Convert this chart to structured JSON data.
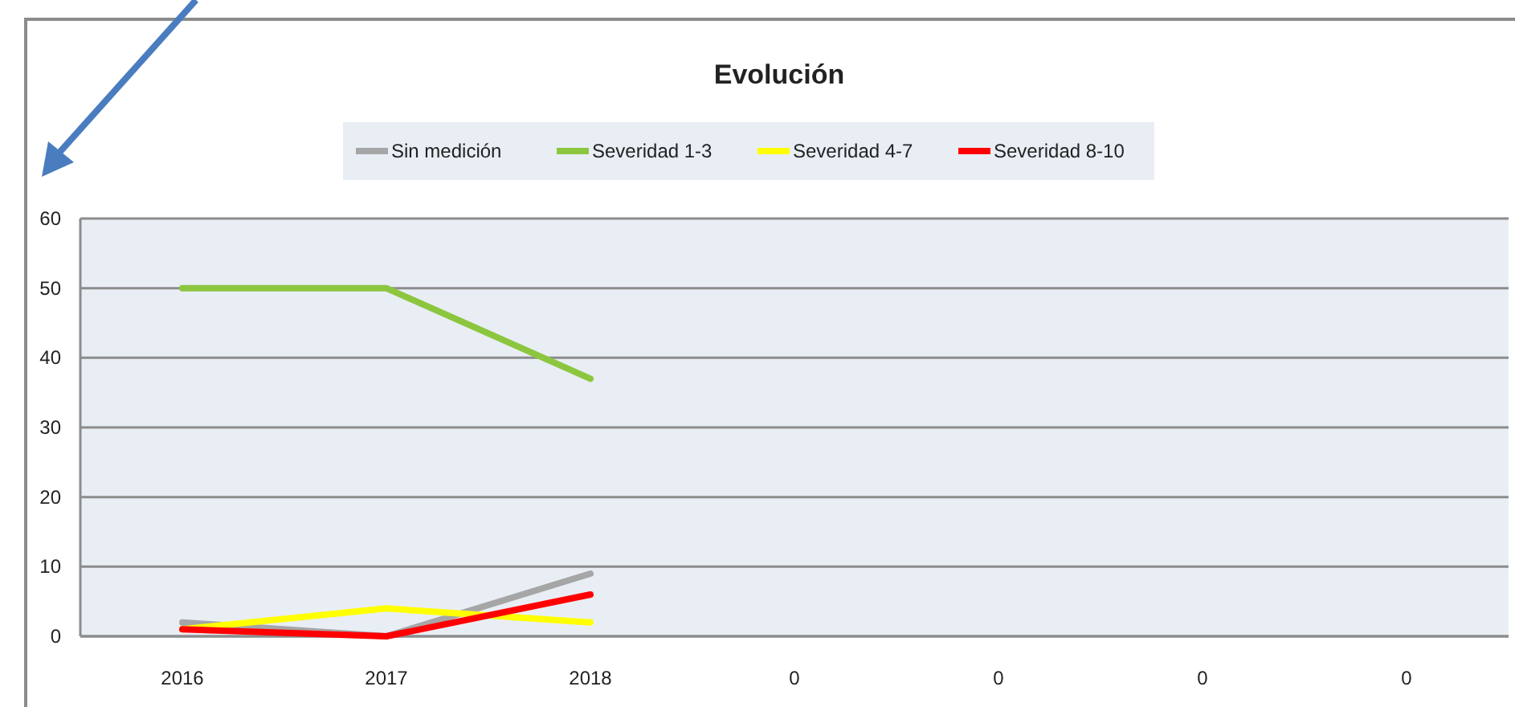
{
  "chart_data": {
    "type": "line",
    "title": "Evolución",
    "categories": [
      "2016",
      "2017",
      "2018",
      "0",
      "0",
      "0",
      "0"
    ],
    "series": [
      {
        "name": "Sin medición",
        "color": "#a6a6a6",
        "values": [
          2,
          0,
          9,
          null,
          null,
          null,
          null
        ]
      },
      {
        "name": "Severidad 1-3",
        "color": "#8cc63f",
        "values": [
          50,
          50,
          37,
          null,
          null,
          null,
          null
        ]
      },
      {
        "name": "Severidad 4-7",
        "color": "#ffff00",
        "values": [
          1,
          4,
          2,
          null,
          null,
          null,
          null
        ]
      },
      {
        "name": "Severidad 8-10",
        "color": "#ff0000",
        "values": [
          1,
          0,
          6,
          null,
          null,
          null,
          null
        ]
      }
    ],
    "ylim": [
      0,
      60
    ],
    "yticks": [
      0,
      10,
      20,
      30,
      40,
      50,
      60
    ],
    "grid": "y",
    "legend": "top",
    "marker": "none",
    "line_style": "solid"
  }
}
